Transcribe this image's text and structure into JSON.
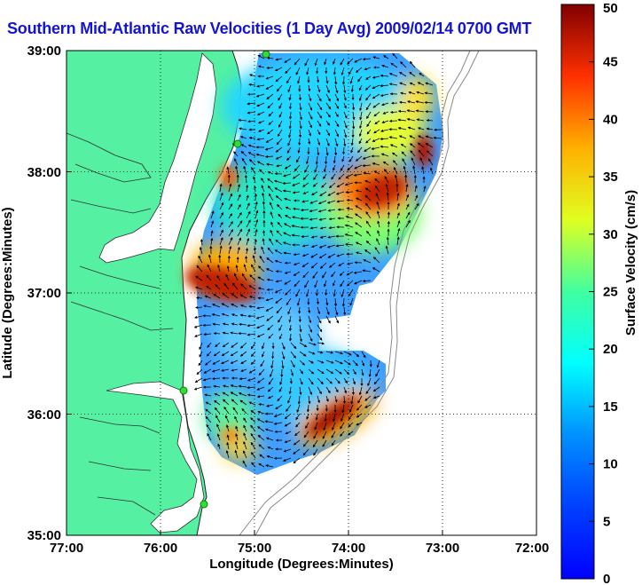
{
  "map": {
    "title": "Southern Mid-Atlantic Raw Velocities (1 Day Avg) 2009/02/14 0700 GMT",
    "xlabel": "Longitude (Degrees:Minutes)",
    "ylabel": "Latitude (Degrees:Minutes)",
    "x_ticks": [
      "77:00",
      "76:00",
      "75:00",
      "74:00",
      "73:00",
      "72:00"
    ],
    "y_ticks": [
      "39:00",
      "38:00",
      "37:00",
      "36:00",
      "35:00"
    ],
    "lon_range": [
      -77,
      -72
    ],
    "lat_range": [
      35,
      39
    ],
    "land_color": "#55f0a2",
    "water_color": "#ffffff",
    "grid": true
  },
  "colorbar": {
    "label": "Surface Velocity (cm/s)",
    "ticks": [
      "50",
      "45",
      "40",
      "35",
      "30",
      "25",
      "20",
      "15",
      "10",
      "5",
      "0"
    ],
    "range": [
      0,
      50
    ],
    "colormap": "jet"
  },
  "chart_data": {
    "type": "heatmap",
    "title": "Southern Mid-Atlantic Raw Velocities (1 Day Avg) 2009/02/14 0700 GMT",
    "xlabel": "Longitude (Degrees:Minutes)",
    "ylabel": "Latitude (Degrees:Minutes)",
    "xlim": [
      -77,
      -72
    ],
    "ylim": [
      35,
      39
    ],
    "colorbar_label": "Surface Velocity (cm/s)",
    "colorbar_range": [
      0,
      50
    ],
    "hotspots": [
      {
        "lon": -75.6,
        "lat": 37.0,
        "speed": 48
      },
      {
        "lon": -73.7,
        "lat": 37.8,
        "speed": 45
      },
      {
        "lon": -73.1,
        "lat": 38.2,
        "speed": 42
      },
      {
        "lon": -74.1,
        "lat": 35.9,
        "speed": 44
      },
      {
        "lon": -75.3,
        "lat": 35.7,
        "speed": 32
      }
    ],
    "stations": [
      {
        "lon": -75.1,
        "lat": 39.0
      },
      {
        "lon": -75.15,
        "lat": 38.22
      },
      {
        "lon": -75.7,
        "lat": 36.18
      },
      {
        "lon": -75.5,
        "lat": 35.25
      }
    ]
  }
}
